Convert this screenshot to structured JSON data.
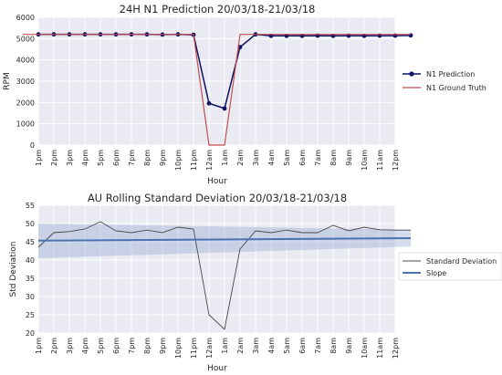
{
  "colors": {
    "axes_bg": "#eaeaf2",
    "grid": "#ffffff",
    "prediction": "#0d1263",
    "ground_truth": "#c44e52",
    "std_line": "#4a4a4a",
    "slope": "#4c72b0",
    "band": "#9fb2d6"
  },
  "chart_data": [
    {
      "type": "line",
      "title": "24H N1 Prediction 20/03/18-21/03/18",
      "xlabel": "Hour",
      "ylabel": "RPM",
      "ylim": [
        0,
        6000
      ],
      "yticks": [
        "0",
        "1000",
        "2000",
        "3000",
        "4000",
        "5000",
        "6000"
      ],
      "grid": true,
      "legend_position": "right",
      "categories": [
        "1pm",
        "2pm",
        "3pm",
        "4pm",
        "5pm",
        "6pm",
        "7pm",
        "8pm",
        "9pm",
        "10pm",
        "11pm",
        "12am",
        "1am",
        "2am",
        "3am",
        "4am",
        "5am",
        "6am",
        "7am",
        "8am",
        "9am",
        "10am",
        "11am",
        "12pm"
      ],
      "series": [
        {
          "name": "N1 Prediction",
          "style": "line-markers",
          "x": [
            1,
            2,
            3,
            4,
            5,
            6,
            7,
            8,
            9,
            10,
            11,
            12,
            13,
            14,
            15,
            16,
            17,
            18,
            19,
            20,
            21,
            22,
            23,
            24,
            25
          ],
          "values": [
            5200,
            5200,
            5200,
            5200,
            5200,
            5200,
            5200,
            5200,
            5190,
            5200,
            5180,
            1960,
            1720,
            4600,
            5200,
            5130,
            5130,
            5130,
            5140,
            5130,
            5140,
            5130,
            5140,
            5140,
            5150
          ]
        },
        {
          "name": "N1 Ground Truth",
          "style": "line",
          "x": [
            0,
            11,
            12,
            13,
            14,
            25
          ],
          "values": [
            5200,
            5200,
            0,
            0,
            5200,
            5200
          ]
        }
      ]
    },
    {
      "type": "line",
      "title": "AU Rolling Standard Deviation 20/03/18-21/03/18",
      "xlabel": "Hour",
      "ylabel": "Std Deviation",
      "ylim": [
        20,
        55
      ],
      "yticks": [
        "20",
        "25",
        "30",
        "35",
        "40",
        "45",
        "50",
        "55"
      ],
      "grid": true,
      "legend_position": "right",
      "categories": [
        "1pm",
        "2pm",
        "3pm",
        "4pm",
        "5pm",
        "6pm",
        "7pm",
        "8pm",
        "9pm",
        "10pm",
        "11pm",
        "12am",
        "1am",
        "2am",
        "3am",
        "4am",
        "5am",
        "6am",
        "7am",
        "8am",
        "9am",
        "10am",
        "11am",
        "12pm"
      ],
      "series": [
        {
          "name": "Standard Deviation",
          "style": "line",
          "x": [
            0,
            1,
            2,
            3,
            4,
            5,
            6,
            7,
            8,
            9,
            10,
            11,
            12,
            13,
            14,
            15,
            16,
            17,
            18,
            19,
            20,
            21,
            22,
            23,
            24
          ],
          "values": [
            43.5,
            47.5,
            47.8,
            48.5,
            50.5,
            48,
            47.5,
            48.2,
            47.5,
            49,
            48.5,
            25,
            21,
            43,
            48,
            47.5,
            48.2,
            47.5,
            47.5,
            49.5,
            48,
            49,
            48.3,
            48.2,
            48.2
          ]
        },
        {
          "name": "Slope",
          "style": "line-thick",
          "x": [
            0,
            24
          ],
          "values": [
            45.3,
            46.0
          ]
        }
      ],
      "band": {
        "x": [
          0,
          24
        ],
        "upper": [
          50.0,
          48.3
        ],
        "lower": [
          40.5,
          43.7
        ]
      }
    }
  ]
}
